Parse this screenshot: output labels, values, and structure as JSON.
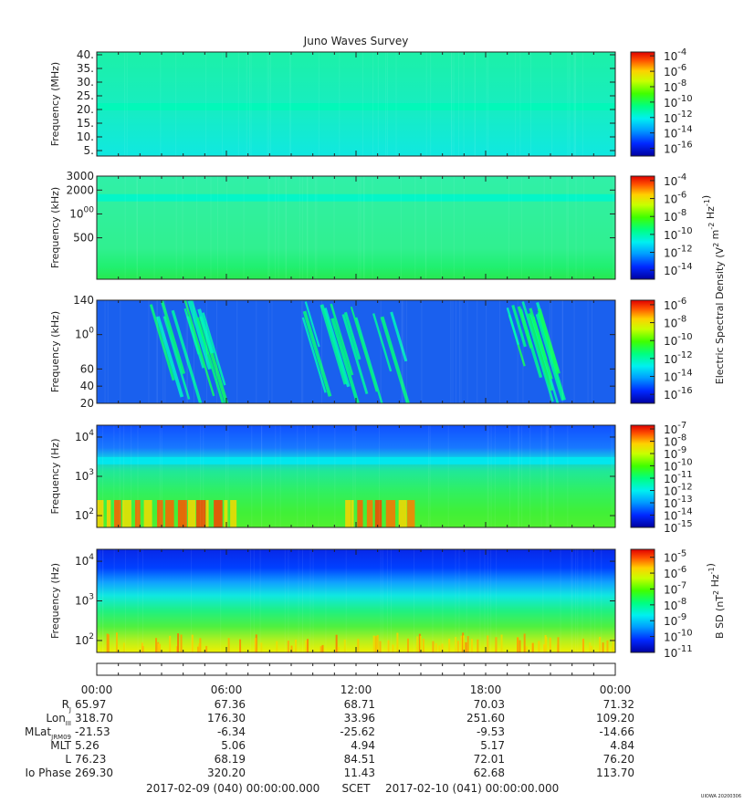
{
  "title": "Juno Waves Survey",
  "footer_credit": "UIOWA 20200306",
  "chart_data": [
    {
      "type": "heatmap",
      "ylabel": "Frequency (MHz)",
      "yticks": [
        "40.",
        "35.",
        "30.",
        "25.",
        "20.",
        "15.",
        "10.",
        "5."
      ],
      "ytick_values": [
        40,
        35,
        30,
        25,
        20,
        15,
        10,
        5
      ],
      "ylim": [
        3,
        41
      ],
      "yscale": "linear",
      "features": [
        {
          "type": "band",
          "freq": 21,
          "level": 0.42
        }
      ],
      "colorbar": {
        "ticks": [
          "10-4",
          "10-6",
          "10-8",
          "10-10",
          "10-12",
          "10-14",
          "10-16"
        ],
        "exponents": [
          -4,
          -6,
          -8,
          -10,
          -12,
          -14,
          -16
        ],
        "range": [
          -3.5,
          -17
        ],
        "label": ""
      }
    },
    {
      "type": "heatmap",
      "ylabel": "Frequency (kHz)",
      "yticks": [
        "3000",
        "2000",
        "1000",
        "500"
      ],
      "ytick_values": [
        3000,
        2000,
        1000,
        500
      ],
      "ylim": [
        150,
        3000
      ],
      "yscale": "log",
      "features": [
        {
          "type": "band",
          "freq": 1600,
          "level": 0.4
        }
      ],
      "colorbar": {
        "ticks": [
          "10-4",
          "10-6",
          "10-8",
          "10-10",
          "10-12",
          "10-14"
        ],
        "exponents": [
          -4,
          -6,
          -8,
          -10,
          -12,
          -14
        ],
        "range": [
          -3.5,
          -15
        ],
        "label": "Electric Spectral Density (V2 m-2 Hz-1)"
      }
    },
    {
      "type": "heatmap",
      "ylabel": "Frequency (kHz)",
      "yticks": [
        "140",
        "100",
        "60",
        "40",
        "20"
      ],
      "ytick_values": [
        140,
        100,
        60,
        40,
        20
      ],
      "ylim": [
        20,
        140
      ],
      "yscale": "linear",
      "features": [
        {
          "type": "bursts",
          "time_ranges_hours": [
            [
              2.5,
              5.0
            ],
            [
              9.5,
              14.0
            ],
            [
              19.0,
              20.5
            ]
          ]
        }
      ],
      "colorbar": {
        "ticks": [
          "10-6",
          "10-8",
          "10-10",
          "10-12",
          "10-14",
          "10-16"
        ],
        "exponents": [
          -6,
          -8,
          -10,
          -12,
          -14,
          -16
        ],
        "range": [
          -5.5,
          -17
        ],
        "label": ""
      }
    },
    {
      "type": "heatmap",
      "ylabel": "Frequency (Hz)",
      "yticks": [
        "104",
        "103",
        "102"
      ],
      "ytick_values": [
        10000,
        1000,
        100
      ],
      "ylim": [
        50,
        20000
      ],
      "yscale": "log",
      "features": [
        {
          "type": "band",
          "freq": 2500,
          "level": 0.35
        },
        {
          "type": "low-freq-enhancement",
          "time_ranges_hours": [
            [
              0.0,
              6.5
            ],
            [
              11.5,
              14.5
            ]
          ]
        }
      ],
      "colorbar": {
        "ticks": [
          "10-7",
          "10-8",
          "10-9",
          "10-10",
          "10-11",
          "10-12",
          "10-13",
          "10-14",
          "10-15"
        ],
        "exponents": [
          -7,
          -8,
          -9,
          -10,
          -11,
          -12,
          -13,
          -14,
          -15
        ],
        "range": [
          -6.7,
          -15
        ],
        "label": ""
      }
    },
    {
      "type": "heatmap",
      "ylabel": "Frequency (Hz)",
      "yticks": [
        "104",
        "103",
        "102"
      ],
      "ytick_values": [
        10000,
        1000,
        100
      ],
      "ylim": [
        50,
        20000
      ],
      "yscale": "log",
      "features": [
        {
          "type": "gradient",
          "high_freq_level": 0.05,
          "low_freq_level": 0.78
        }
      ],
      "colorbar": {
        "ticks": [
          "10-5",
          "10-6",
          "10-7",
          "10-8",
          "10-9",
          "10-10",
          "10-11"
        ],
        "exponents": [
          -5,
          -6,
          -7,
          -8,
          -9,
          -10,
          -11
        ],
        "range": [
          -4.5,
          -11
        ],
        "label": "B SD (nT2 Hz-1)"
      }
    }
  ],
  "xaxis": {
    "labels": [
      "00:00",
      "06:00",
      "12:00",
      "18:00",
      "00:00"
    ],
    "label_hours": [
      0,
      6,
      12,
      18,
      24
    ],
    "range_hours": [
      0,
      24
    ]
  },
  "ephemeris": {
    "rows": [
      {
        "label": "RJ",
        "values": [
          "65.97",
          "67.36",
          "68.71",
          "70.03",
          "71.32"
        ]
      },
      {
        "label": "LonIII",
        "values": [
          "318.70",
          "176.30",
          "33.96",
          "251.60",
          "109.20"
        ]
      },
      {
        "label": "MLatJRM09",
        "values": [
          "-21.53",
          "-6.34",
          "-25.62",
          "-9.53",
          "-14.66"
        ]
      },
      {
        "label": "MLT",
        "values": [
          "5.26",
          "5.06",
          "4.94",
          "5.17",
          "4.84"
        ]
      },
      {
        "label": "L",
        "values": [
          "76.23",
          "68.19",
          "84.51",
          "72.01",
          "76.20"
        ]
      },
      {
        "label": "Io Phase",
        "values": [
          "269.30",
          "320.20",
          "11.43",
          "62.68",
          "113.70"
        ]
      }
    ]
  },
  "scet": {
    "start": "2017-02-09 (040) 00:00:00.000",
    "label": "SCET",
    "end": "2017-02-10 (041) 00:00:00.000"
  }
}
